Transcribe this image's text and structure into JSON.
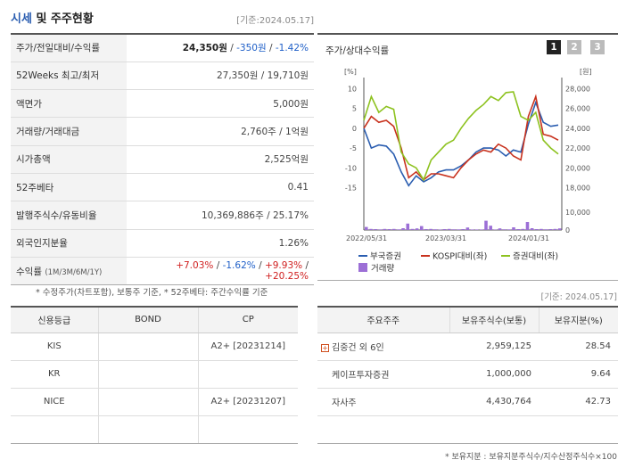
{
  "header": {
    "title_blue": "시세",
    "title_rest": " 및 주주현황",
    "date": "[기준:2024.05.17]"
  },
  "info_rows": [
    {
      "label": "주가/전일대비/수익률",
      "price": "24,350원",
      "change": "-350원",
      "rate": "-1.42%"
    },
    {
      "label": "52Weeks 최고/최저",
      "value": "27,350원 / 19,710원"
    },
    {
      "label": "액면가",
      "value": "5,000원"
    },
    {
      "label": "거래량/거래대금",
      "value": "2,760주 / 1억원"
    },
    {
      "label": "시가총액",
      "value": "2,525억원"
    },
    {
      "label": "52주베타",
      "value": "0.41"
    },
    {
      "label": "발행주식수/유동비율",
      "value": "10,369,886주 / 25.17%"
    },
    {
      "label": "외국인지분율",
      "value": "1.26%"
    },
    {
      "label": "수익률",
      "label_sub": "(1M/3M/6M/1Y)",
      "r1": "+7.03%",
      "r2": "-1.62%",
      "r3": "+9.93%",
      "r4": "+20.25%"
    }
  ],
  "notes": {
    "note1": "* 수정주가(차트포함), 보통주 기준, * 52주베타: 주간수익률 기준",
    "date2": "[기준: 2024.05.17]",
    "note2": "* 보유지분 : 보유지분주식수/지수산정주식수×100"
  },
  "chart_panel": {
    "title": "주가/상대수익률",
    "buttons": [
      "1",
      "2",
      "3"
    ],
    "colors": {
      "active": "#222222",
      "inactive": "#bbbbbb"
    }
  },
  "chart_data": {
    "type": "line",
    "y_left_label": "[%]",
    "y_right_label": "[원]",
    "y_left_ticks": [
      "10",
      "5",
      "0",
      "-5",
      "-10",
      "-15"
    ],
    "y_right_ticks": [
      "28,000",
      "26,000",
      "24,000",
      "22,000",
      "20,000",
      "18,000"
    ],
    "volume_ticks": [
      "10,000",
      "0"
    ],
    "x_ticks": [
      "2022/05/31",
      "2023/03/31",
      "2024/01/31"
    ],
    "ylim_left": [
      -16,
      11
    ],
    "series": [
      {
        "name": "부국증권",
        "color": "#2a5db0",
        "values": [
          0,
          -5,
          -4.2,
          -4.5,
          -6.5,
          -11,
          -14.5,
          -12,
          -13.5,
          -12.5,
          -11,
          -10.5,
          -10.5,
          -9.5,
          -8,
          -6,
          -5,
          -5,
          -5.5,
          -7,
          -5.5,
          -6,
          1,
          6.5,
          1.5,
          0.5,
          0.8
        ]
      },
      {
        "name": "KOSPI대비(좌)",
        "color": "#c8321e",
        "values": [
          0,
          3,
          1.5,
          2,
          0.5,
          -5,
          -12.5,
          -11,
          -13,
          -11.5,
          -11.5,
          -12,
          -12.5,
          -10,
          -8,
          -6.5,
          -5.5,
          -6,
          -4,
          -5,
          -7,
          -8,
          3,
          8,
          -1.5,
          -2,
          -3
        ]
      },
      {
        "name": "증권대비(좌)",
        "color": "#8dc21f",
        "values": [
          2,
          8,
          4,
          5.5,
          4.8,
          -6,
          -9,
          -10,
          -13,
          -8,
          -6,
          -4,
          -3,
          0,
          2.5,
          4.5,
          6,
          8,
          7,
          9,
          9.2,
          3,
          2,
          4,
          -3,
          -5,
          -6.5
        ]
      }
    ],
    "volume": {
      "name": "거래량",
      "color": "#9c6fd6",
      "values": [
        1700,
        600,
        500,
        350,
        600,
        500,
        600,
        350,
        1000,
        3600,
        600,
        900,
        2200,
        500,
        600,
        400,
        300,
        500,
        600,
        400,
        350,
        500,
        1400,
        300,
        300,
        300,
        5200,
        2400,
        300,
        900,
        400,
        350,
        1500,
        500,
        600,
        4500,
        1000,
        500,
        600,
        400,
        500,
        600,
        900
      ]
    }
  },
  "credit": {
    "headers": [
      "신용등급",
      "BOND",
      "CP"
    ],
    "rows": [
      [
        "KIS",
        "",
        "A2+ [20231214]"
      ],
      [
        "KR",
        "",
        ""
      ],
      [
        "NICE",
        "",
        "A2+ [20231207]"
      ],
      [
        "",
        "",
        ""
      ]
    ]
  },
  "holders": {
    "headers": [
      "주요주주",
      "보유주식수(보통)",
      "보유지분(%)"
    ],
    "rows": [
      {
        "name": "김중건 외 6인",
        "shares": "2,959,125",
        "pct": "28.54",
        "expand": "+"
      },
      {
        "name": "케이프투자증권",
        "shares": "1,000,000",
        "pct": "9.64"
      },
      {
        "name": "자사주",
        "shares": "4,430,764",
        "pct": "42.73"
      },
      {
        "name": "",
        "shares": "",
        "pct": ""
      }
    ]
  }
}
